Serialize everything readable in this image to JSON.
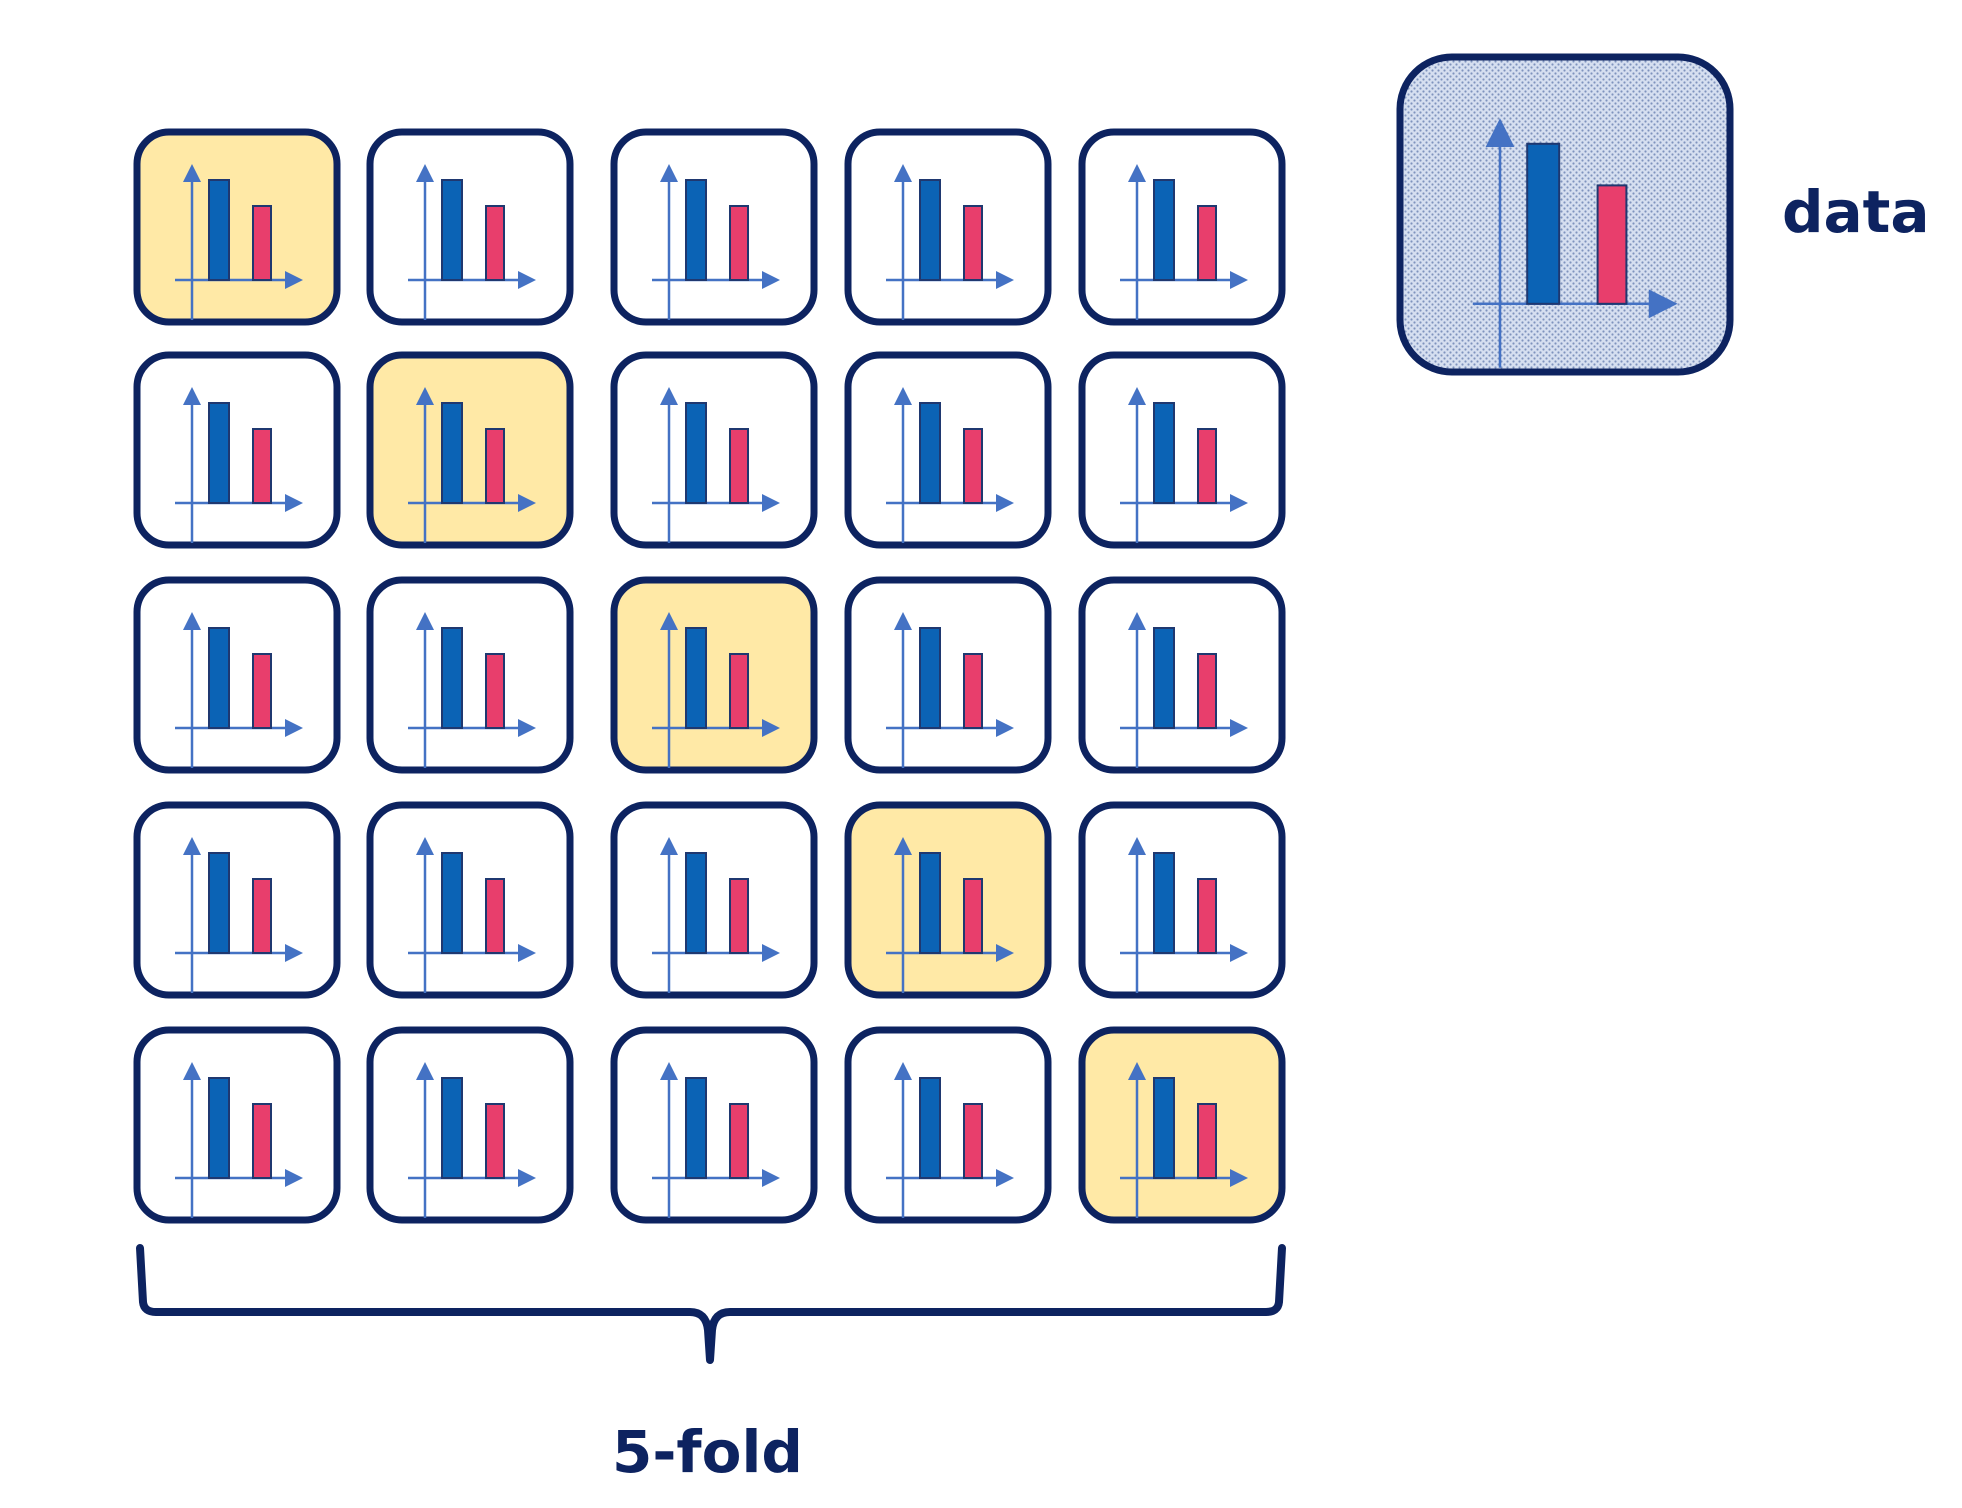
{
  "labels": {
    "data": "data",
    "folds": "5-fold"
  },
  "grid": {
    "rows": 5,
    "cols": 5,
    "highlighted_cells": [
      [
        0,
        0
      ],
      [
        1,
        1
      ],
      [
        2,
        2
      ],
      [
        3,
        3
      ],
      [
        4,
        4
      ]
    ]
  },
  "colors": {
    "border": "#0d2360",
    "highlight_fill": "#ffe9a6",
    "normal_fill": "#ffffff",
    "data_fill": "#cbd5ea",
    "axis": "#4472c4",
    "bar_primary": "#0b63b5",
    "bar_secondary": "#e83e6c",
    "bar_outline": "#1f3870"
  },
  "icons": {
    "cell": "bar-chart-icon",
    "data": "bar-chart-icon"
  }
}
